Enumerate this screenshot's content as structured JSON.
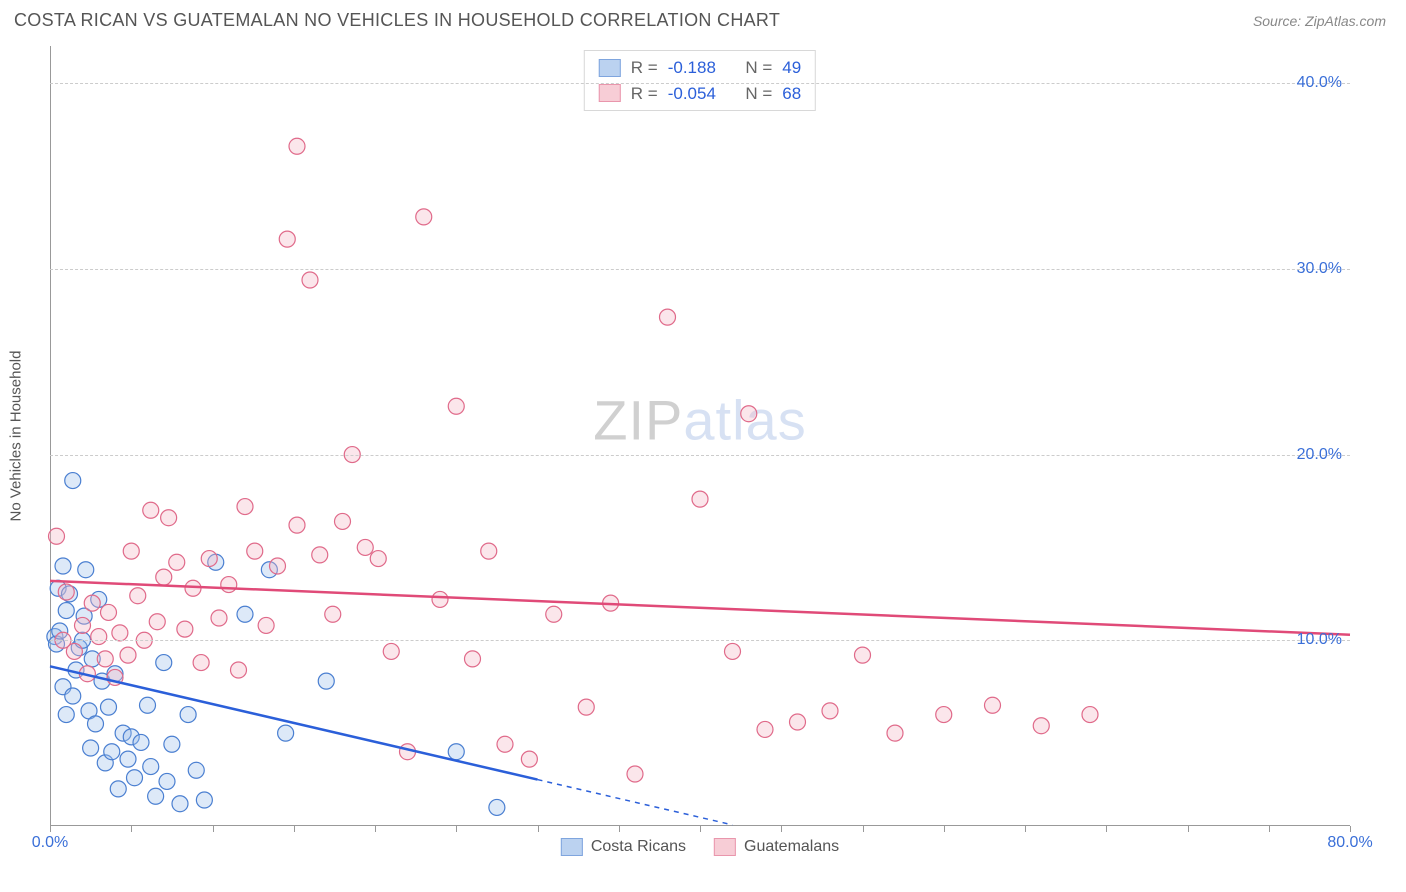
{
  "title": "COSTA RICAN VS GUATEMALAN NO VEHICLES IN HOUSEHOLD CORRELATION CHART",
  "source_label": "Source: ZipAtlas.com",
  "ylabel": "No Vehicles in Household",
  "watermark": {
    "part1": "ZIP",
    "part2": "atlas"
  },
  "chart": {
    "type": "scatter",
    "background_color": "#ffffff",
    "grid_color": "#cccccc",
    "axis_color": "#999999",
    "tick_color": "#3a6fd8",
    "label_color": "#555555",
    "title_color": "#555555",
    "title_fontsize": 18,
    "tick_fontsize": 16,
    "label_fontsize": 15,
    "xlim": [
      0,
      80
    ],
    "ylim": [
      0,
      42
    ],
    "xticks": [
      0,
      80
    ],
    "xtick_labels": [
      "0.0%",
      "80.0%"
    ],
    "yticks": [
      10,
      20,
      30,
      40
    ],
    "ytick_labels": [
      "10.0%",
      "20.0%",
      "30.0%",
      "40.0%"
    ],
    "minor_xticks_step": 5,
    "marker_style": "circle",
    "marker_radius": 8,
    "marker_fill_opacity": 0.35,
    "marker_stroke_width": 1.2,
    "trendline_width": 2.5,
    "trendline_dash_extrapolate": "5,5"
  },
  "series": [
    {
      "name": "Costa Ricans",
      "color_fill": "#9fc0ea",
      "color_stroke": "#4a7fd1",
      "R": "-0.188",
      "N": "49",
      "trendline": {
        "x1": 0,
        "y1": 8.6,
        "x2": 30,
        "y2": 2.5,
        "extrapolate_to_x": 42,
        "color": "#2b5fd9"
      },
      "points": [
        [
          0.3,
          10.2
        ],
        [
          0.4,
          9.8
        ],
        [
          0.5,
          12.8
        ],
        [
          0.6,
          10.5
        ],
        [
          0.8,
          14.0
        ],
        [
          0.8,
          7.5
        ],
        [
          1.0,
          11.6
        ],
        [
          1.0,
          6.0
        ],
        [
          1.2,
          12.5
        ],
        [
          1.4,
          18.6
        ],
        [
          1.4,
          7.0
        ],
        [
          1.6,
          8.4
        ],
        [
          1.8,
          9.6
        ],
        [
          2.0,
          10.0
        ],
        [
          2.1,
          11.3
        ],
        [
          2.2,
          13.8
        ],
        [
          2.4,
          6.2
        ],
        [
          2.5,
          4.2
        ],
        [
          2.6,
          9.0
        ],
        [
          2.8,
          5.5
        ],
        [
          3.0,
          12.2
        ],
        [
          3.2,
          7.8
        ],
        [
          3.4,
          3.4
        ],
        [
          3.6,
          6.4
        ],
        [
          3.8,
          4.0
        ],
        [
          4.0,
          8.2
        ],
        [
          4.2,
          2.0
        ],
        [
          4.5,
          5.0
        ],
        [
          4.8,
          3.6
        ],
        [
          5.0,
          4.8
        ],
        [
          5.2,
          2.6
        ],
        [
          5.6,
          4.5
        ],
        [
          6.0,
          6.5
        ],
        [
          6.2,
          3.2
        ],
        [
          6.5,
          1.6
        ],
        [
          7.0,
          8.8
        ],
        [
          7.2,
          2.4
        ],
        [
          7.5,
          4.4
        ],
        [
          8.0,
          1.2
        ],
        [
          8.5,
          6.0
        ],
        [
          9.0,
          3.0
        ],
        [
          9.5,
          1.4
        ],
        [
          10.2,
          14.2
        ],
        [
          12.0,
          11.4
        ],
        [
          13.5,
          13.8
        ],
        [
          14.5,
          5.0
        ],
        [
          17.0,
          7.8
        ],
        [
          27.5,
          1.0
        ],
        [
          25.0,
          4.0
        ]
      ]
    },
    {
      "name": "Guatemalans",
      "color_fill": "#f4b8c6",
      "color_stroke": "#e06a8a",
      "R": "-0.054",
      "N": "68",
      "trendline": {
        "x1": 0,
        "y1": 13.2,
        "x2": 80,
        "y2": 10.3,
        "color": "#e04a78"
      },
      "points": [
        [
          0.4,
          15.6
        ],
        [
          0.8,
          10.0
        ],
        [
          1.0,
          12.6
        ],
        [
          1.5,
          9.4
        ],
        [
          2.0,
          10.8
        ],
        [
          2.3,
          8.2
        ],
        [
          2.6,
          12.0
        ],
        [
          3.0,
          10.2
        ],
        [
          3.4,
          9.0
        ],
        [
          3.6,
          11.5
        ],
        [
          4.0,
          8.0
        ],
        [
          4.3,
          10.4
        ],
        [
          4.8,
          9.2
        ],
        [
          5.0,
          14.8
        ],
        [
          5.4,
          12.4
        ],
        [
          5.8,
          10.0
        ],
        [
          6.2,
          17.0
        ],
        [
          6.6,
          11.0
        ],
        [
          7.0,
          13.4
        ],
        [
          7.3,
          16.6
        ],
        [
          7.8,
          14.2
        ],
        [
          8.3,
          10.6
        ],
        [
          8.8,
          12.8
        ],
        [
          9.3,
          8.8
        ],
        [
          9.8,
          14.4
        ],
        [
          10.4,
          11.2
        ],
        [
          11.0,
          13.0
        ],
        [
          11.6,
          8.4
        ],
        [
          12.0,
          17.2
        ],
        [
          12.6,
          14.8
        ],
        [
          13.3,
          10.8
        ],
        [
          14.0,
          14.0
        ],
        [
          14.6,
          31.6
        ],
        [
          15.2,
          36.6
        ],
        [
          15.2,
          16.2
        ],
        [
          16.0,
          29.4
        ],
        [
          16.6,
          14.6
        ],
        [
          17.4,
          11.4
        ],
        [
          18.0,
          16.4
        ],
        [
          18.6,
          20.0
        ],
        [
          19.4,
          15.0
        ],
        [
          20.2,
          14.4
        ],
        [
          21.0,
          9.4
        ],
        [
          22.0,
          4.0
        ],
        [
          23.0,
          32.8
        ],
        [
          24.0,
          12.2
        ],
        [
          25.0,
          22.6
        ],
        [
          26.0,
          9.0
        ],
        [
          27.0,
          14.8
        ],
        [
          28.0,
          4.4
        ],
        [
          29.5,
          3.6
        ],
        [
          31.0,
          11.4
        ],
        [
          33.0,
          6.4
        ],
        [
          34.5,
          12.0
        ],
        [
          36.0,
          2.8
        ],
        [
          38.0,
          27.4
        ],
        [
          40.0,
          17.6
        ],
        [
          42.0,
          9.4
        ],
        [
          43.0,
          22.2
        ],
        [
          44.0,
          5.2
        ],
        [
          46.0,
          5.6
        ],
        [
          48.0,
          6.2
        ],
        [
          50.0,
          9.2
        ],
        [
          52.0,
          5.0
        ],
        [
          55.0,
          6.0
        ],
        [
          58.0,
          6.5
        ],
        [
          61.0,
          5.4
        ],
        [
          64.0,
          6.0
        ]
      ]
    }
  ],
  "legend_top_labels": {
    "R": "R =",
    "N": "N ="
  },
  "legend_bottom": {
    "series1": "Costa Ricans",
    "series2": "Guatemalans"
  }
}
